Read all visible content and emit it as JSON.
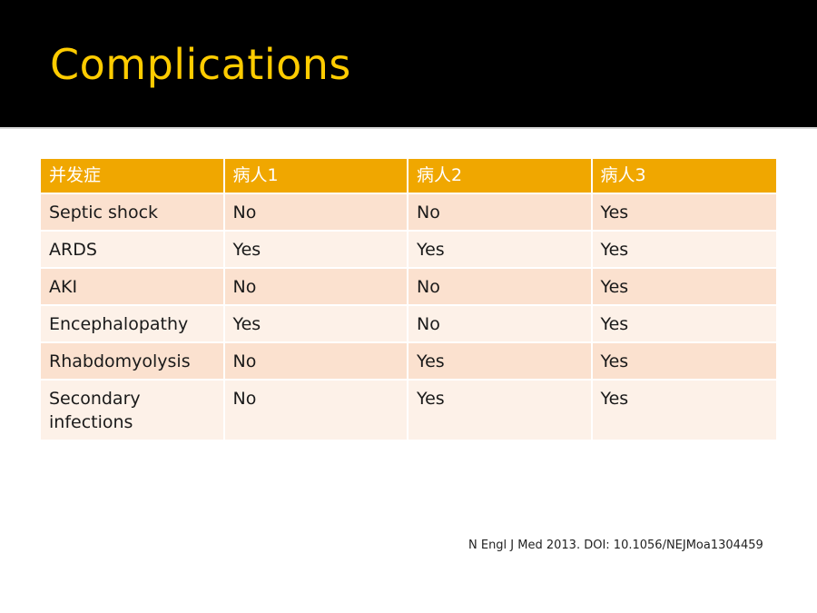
{
  "slide": {
    "title": "Complications",
    "citation": "N Engl J Med 2013. DOI: 10.1056/NEJMoa1304459"
  },
  "table": {
    "headers": [
      "并发症",
      "病人1",
      "病人2",
      "病人3"
    ],
    "rows": [
      [
        "Septic shock",
        "No",
        "No",
        "Yes"
      ],
      [
        "ARDS",
        "Yes",
        "Yes",
        "Yes"
      ],
      [
        "AKI",
        "No",
        "No",
        "Yes"
      ],
      [
        "Encephalopathy",
        "Yes",
        "No",
        "Yes"
      ],
      [
        "Rhabdomyolysis",
        "No",
        "Yes",
        "Yes"
      ],
      [
        "Secondary infections",
        "No",
        "Yes",
        "Yes"
      ]
    ]
  },
  "colors": {
    "title_bar": "#000000",
    "title_text": "#ffcc00",
    "header_fill": "#f0a700",
    "row_odd": "#fbe1cf",
    "row_even": "#fdf1e8"
  }
}
